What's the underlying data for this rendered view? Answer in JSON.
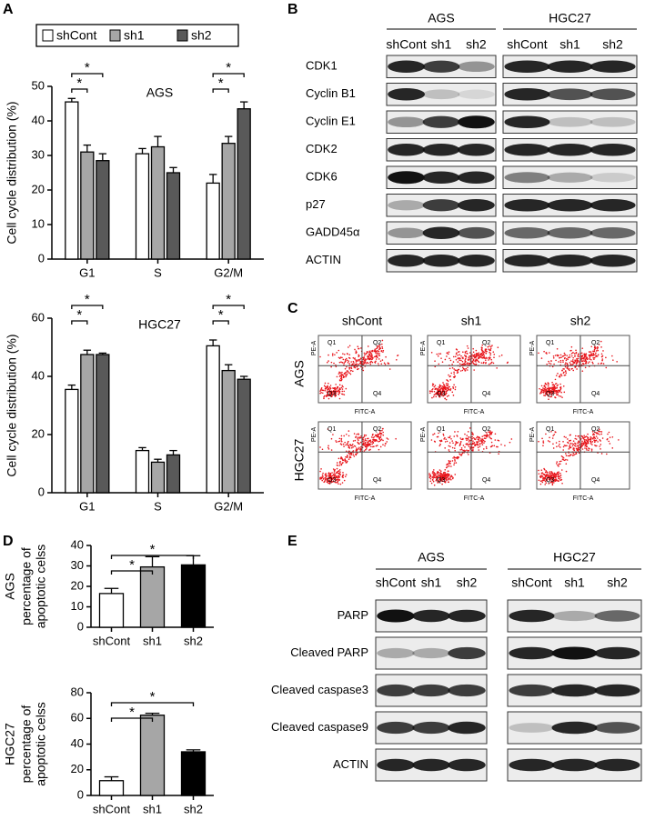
{
  "panel_labels": [
    "A",
    "B",
    "C",
    "D",
    "E"
  ],
  "chart_data": [
    {
      "type": "bar",
      "title": "AGS",
      "y_label": "Cell cycle distribution (%)",
      "legend": "top",
      "categories": [
        "G1",
        "S",
        "G2/M"
      ],
      "series": [
        {
          "name": "shCont",
          "color": "#ffffff",
          "values": [
            45.5,
            30.5,
            22
          ],
          "errors": [
            1,
            1.5,
            2.5
          ]
        },
        {
          "name": "sh1",
          "color": "#a6a6a6",
          "values": [
            31,
            32.5,
            33.5
          ],
          "errors": [
            2,
            3,
            2
          ]
        },
        {
          "name": "sh2",
          "color": "#595959",
          "values": [
            28.5,
            25,
            43.5
          ],
          "errors": [
            2,
            1.5,
            2
          ]
        }
      ],
      "ylim": [
        0,
        50
      ],
      "yticks": [
        0,
        10,
        20,
        30,
        40,
        50
      ],
      "comparisons": [
        {
          "category": "G1",
          "series": [
            "shCont",
            "sh1"
          ],
          "label": "*"
        },
        {
          "category": "G1",
          "series": [
            "shCont",
            "sh2"
          ],
          "label": "*"
        },
        {
          "category": "G2/M",
          "series": [
            "shCont",
            "sh1"
          ],
          "label": "*"
        },
        {
          "category": "G2/M",
          "series": [
            "shCont",
            "sh2"
          ],
          "label": "*"
        }
      ]
    },
    {
      "type": "bar",
      "title": "HGC27",
      "y_label": "Cell cycle distribution (%)",
      "categories": [
        "G1",
        "S",
        "G2/M"
      ],
      "series": [
        {
          "color": "#ffffff",
          "values": [
            35.5,
            14.5,
            50.5
          ],
          "errors": [
            1.5,
            1,
            2
          ]
        },
        {
          "color": "#a6a6a6",
          "values": [
            47.5,
            10.5,
            42
          ],
          "errors": [
            1.5,
            1,
            2
          ]
        },
        {
          "color": "#595959",
          "values": [
            47.5,
            13,
            39
          ],
          "errors": [
            0.5,
            1.5,
            1
          ]
        }
      ],
      "ylim": [
        0,
        60
      ],
      "yticks": [
        0,
        20,
        40,
        60
      ],
      "comparisons": [
        {
          "category": "G1",
          "series": [
            "shCont",
            "sh1"
          ],
          "label": "*"
        },
        {
          "category": "G1",
          "series": [
            "shCont",
            "sh2"
          ],
          "label": "*"
        },
        {
          "category": "G2/M",
          "series": [
            "shCont",
            "sh1"
          ],
          "label": "*"
        },
        {
          "category": "G2/M",
          "series": [
            "shCont",
            "sh2"
          ],
          "label": "*"
        }
      ]
    },
    {
      "type": "bar",
      "title": "AGS",
      "y_label": [
        "percentage of",
        "apoptotic celss"
      ],
      "categories": [
        "shCont",
        "sh1",
        "sh2"
      ],
      "values": [
        16.5,
        29.5,
        30.5
      ],
      "errors": [
        2.5,
        5,
        4.5
      ],
      "colors": [
        "#ffffff",
        "#a6a6a6",
        "#000000"
      ],
      "ylim": [
        0,
        40
      ],
      "yticks": [
        0,
        10,
        20,
        30,
        40
      ],
      "comparisons": [
        {
          "categories": [
            "shCont",
            "sh1"
          ],
          "label": "*"
        },
        {
          "categories": [
            "shCont",
            "sh2"
          ],
          "label": "*"
        }
      ]
    },
    {
      "type": "bar",
      "title": "HGC27",
      "y_label": [
        "percentage of",
        "apoptotic celss"
      ],
      "categories": [
        "shCont",
        "sh1",
        "sh2"
      ],
      "values": [
        11.5,
        62.5,
        34
      ],
      "errors": [
        3,
        1.5,
        1.5
      ],
      "colors": [
        "#ffffff",
        "#a6a6a6",
        "#000000"
      ],
      "ylim": [
        0,
        80
      ],
      "yticks": [
        0,
        20,
        40,
        60,
        80
      ],
      "comparisons": [
        {
          "categories": [
            "shCont",
            "sh1"
          ],
          "label": "*"
        },
        {
          "categories": [
            "shCont",
            "sh2"
          ],
          "label": "*"
        }
      ]
    }
  ],
  "blot_b": {
    "groups": [
      "AGS",
      "HGC27"
    ],
    "lanes": [
      "shCont",
      "sh1",
      "sh2"
    ],
    "rows": [
      "CDK1",
      "Cyclin B1",
      "Cyclin E1",
      "CDK2",
      "CDK6",
      "p27",
      "GADD45α",
      "ACTIN"
    ]
  },
  "flow_c": {
    "columns": [
      "shCont",
      "sh1",
      "sh2"
    ],
    "rows": [
      "AGS",
      "HGC27"
    ],
    "quadrants": [
      "Q1",
      "Q2",
      "Q3",
      "Q4"
    ],
    "x_label": "FITC-A",
    "y_label": "PE-A"
  },
  "blot_e": {
    "groups": [
      "AGS",
      "HGC27"
    ],
    "lanes": [
      "shCont",
      "sh1",
      "sh2"
    ],
    "rows": [
      "PARP",
      "Cleaved PARP",
      "Cleaved caspase3",
      "Cleaved caspase9",
      "ACTIN"
    ]
  }
}
